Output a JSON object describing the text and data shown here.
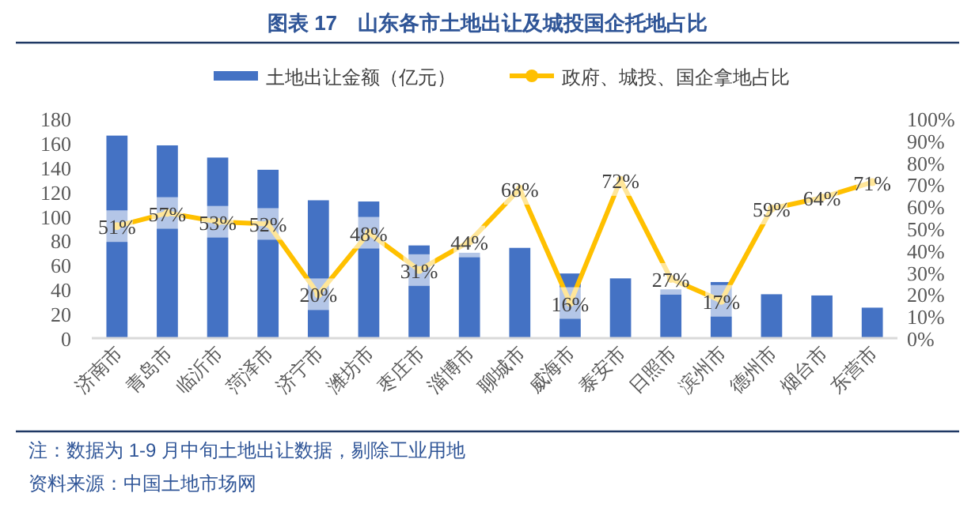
{
  "chart_data": {
    "type": "bar",
    "title": "图表 17　山东各市土地出让及城投国企托地占比",
    "categories": [
      "济南市",
      "青岛市",
      "临沂市",
      "菏泽市",
      "济宁市",
      "潍坊市",
      "枣庄市",
      "淄博市",
      "聊城市",
      "威海市",
      "泰安市",
      "日照市",
      "滨州市",
      "德州市",
      "烟台市",
      "东营市"
    ],
    "series": [
      {
        "name": "土地出让金额（亿元）",
        "color": "#4472c4",
        "values": [
          166,
          158,
          148,
          138,
          113,
          112,
          76,
          70,
          74,
          53,
          49,
          40,
          46,
          36,
          35,
          25
        ]
      },
      {
        "name": "政府、城投、国企拿地占比",
        "type": "line",
        "axis": "y2",
        "marker": "circle",
        "color": "#ffc000",
        "values": [
          51,
          57,
          53,
          52,
          20,
          48,
          31,
          44,
          68,
          16,
          72,
          27,
          17,
          59,
          64,
          71
        ],
        "value_labels": [
          "51%",
          "57%",
          "53%",
          "52%",
          "20%",
          "48%",
          "31%",
          "44%",
          "68%",
          "16%",
          "72%",
          "27%",
          "17%",
          "59%",
          "64%",
          "71%"
        ]
      }
    ],
    "ylim": [
      0,
      180
    ],
    "yticks": [
      0,
      20,
      40,
      60,
      80,
      100,
      120,
      140,
      160,
      180
    ],
    "y2lim": [
      0,
      100
    ],
    "y2ticks": [
      {
        "value": 0,
        "label": "0%"
      },
      {
        "value": 10,
        "label": "10%"
      },
      {
        "value": 20,
        "label": "20%"
      },
      {
        "value": 30,
        "label": "30%"
      },
      {
        "value": 40,
        "label": "40%"
      },
      {
        "value": 50,
        "label": "50%"
      },
      {
        "value": 60,
        "label": "60%"
      },
      {
        "value": 70,
        "label": "70%"
      },
      {
        "value": 80,
        "label": "80%"
      },
      {
        "value": 90,
        "label": "90%"
      },
      {
        "value": 100,
        "label": "100%"
      }
    ],
    "grid": false,
    "legend": "top",
    "annotations": [
      "注：数据为 1-9 月中旬土地出让数据，剔除工业用地",
      "资料来源：中国土地市场网"
    ]
  }
}
